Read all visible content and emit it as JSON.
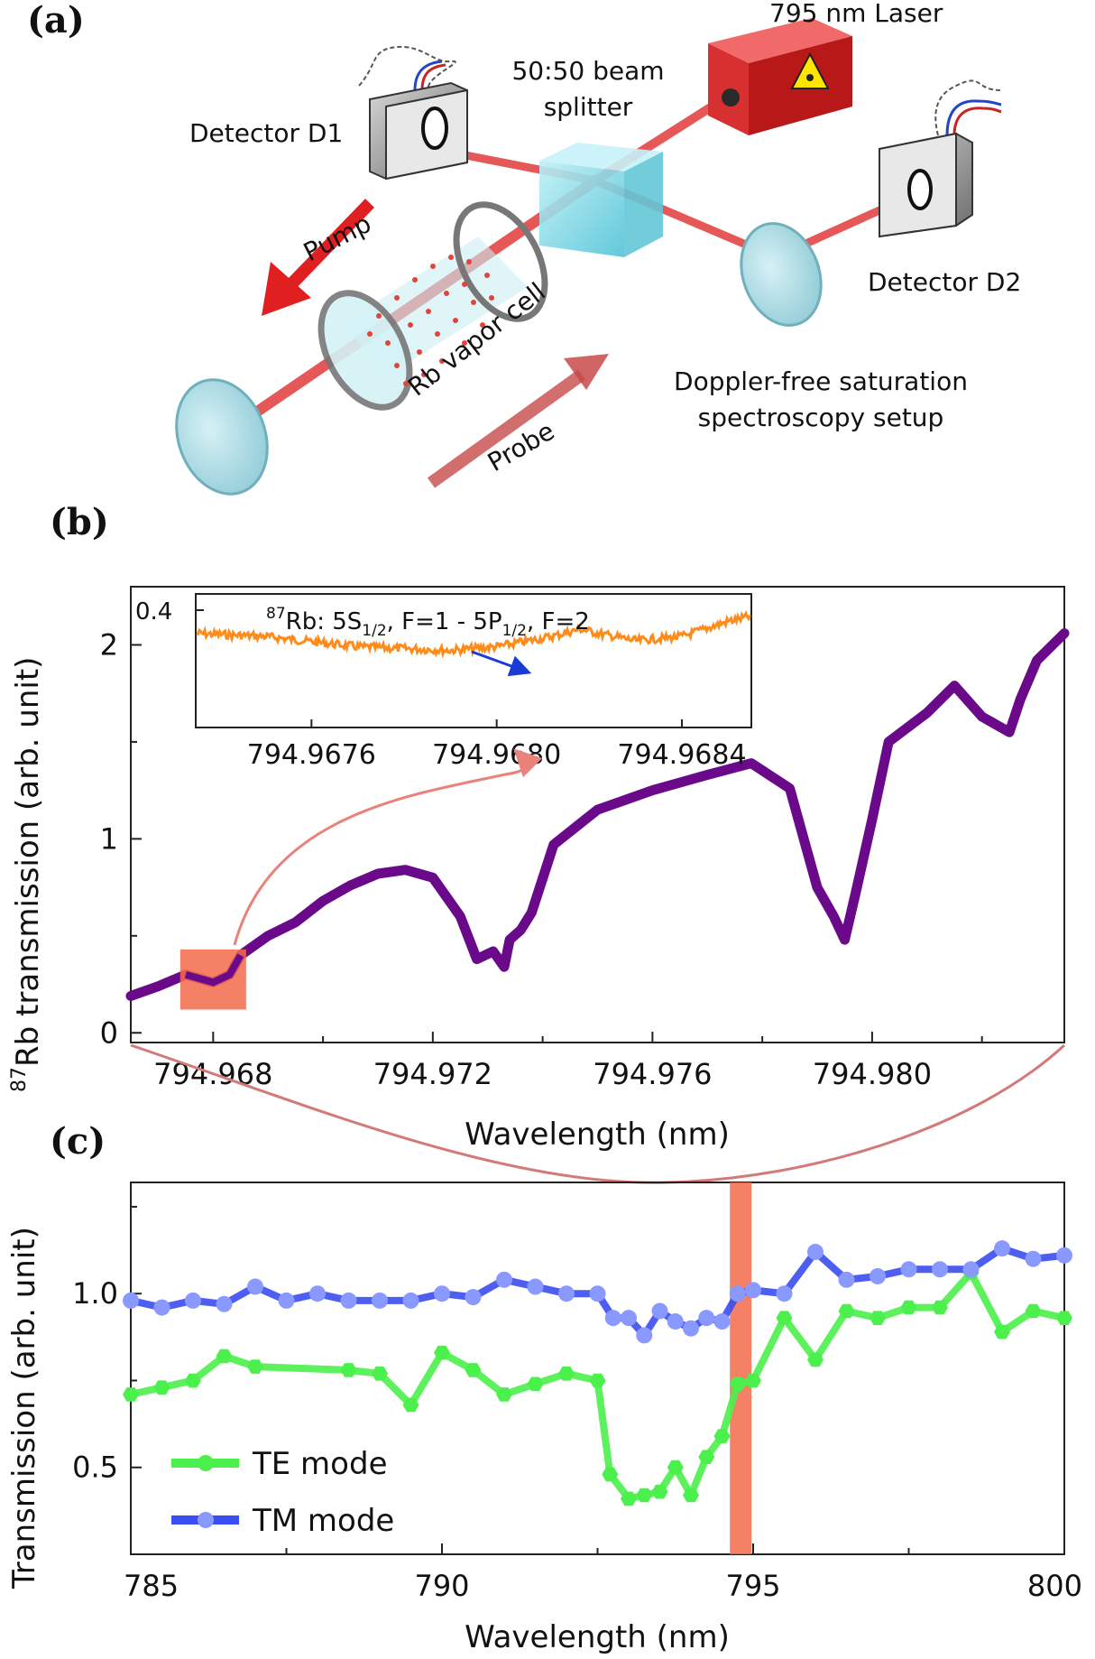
{
  "panels": {
    "a": "(a)",
    "b": "(b)",
    "c": "(c)"
  },
  "setup": {
    "laser": "795 nm Laser",
    "splitter_line1": "50:50 beam",
    "splitter_line2": "splitter",
    "detector1": "Detector D1",
    "detector2": "Detector D2",
    "pump": "Pump",
    "probe": "Probe",
    "cell": "Rb vapor cell",
    "caption_line1": "Doppler-free saturation",
    "caption_line2": "spectroscopy setup"
  },
  "colors": {
    "laser_beam": "#e23a3a",
    "purple_trace": "#6a0a8a",
    "orange_trace": "#ff8c1a",
    "te": "#4cf04c",
    "tm": "#3a4df0",
    "highlight": "#f26b4b",
    "glass": "#9ad6e0"
  },
  "chart_data": [
    {
      "type": "line",
      "panel": "b",
      "xlabel": "Wavelength (nm)",
      "ylabel_sup": "87",
      "ylabel": "Rb transmission (arb. unit)",
      "xlim": [
        794.9665,
        794.9835
      ],
      "ylim": [
        -0.05,
        2.3
      ],
      "xticks": [
        794.968,
        794.972,
        794.976,
        794.98
      ],
      "xtick_labels": [
        "794.968",
        "794.972",
        "794.976",
        "794.980"
      ],
      "yticks": [
        0,
        1,
        2
      ],
      "ytick_labels": [
        "0",
        "1",
        "2"
      ],
      "series": [
        {
          "name": "Rb transmission",
          "x": [
            794.9665,
            794.967,
            794.9675,
            794.968,
            794.9683,
            794.9685,
            794.969,
            794.9695,
            794.97,
            794.9705,
            794.971,
            794.9715,
            794.972,
            794.9725,
            794.9728,
            794.9731,
            794.9733,
            794.9734,
            794.9736,
            794.9738,
            794.9742,
            794.975,
            794.976,
            794.977,
            794.9778,
            794.9785,
            794.979,
            794.9793,
            794.9795,
            794.9797,
            794.98,
            794.9803,
            794.981,
            794.9815,
            794.982,
            794.9825,
            794.9827,
            794.983,
            794.9835
          ],
          "values": [
            0.19,
            0.24,
            0.3,
            0.26,
            0.3,
            0.4,
            0.5,
            0.57,
            0.68,
            0.76,
            0.82,
            0.84,
            0.8,
            0.6,
            0.38,
            0.42,
            0.34,
            0.48,
            0.53,
            0.62,
            0.97,
            1.15,
            1.25,
            1.33,
            1.39,
            1.26,
            0.75,
            0.6,
            0.48,
            0.72,
            1.1,
            1.5,
            1.65,
            1.79,
            1.63,
            1.55,
            1.72,
            1.92,
            2.06
          ]
        }
      ]
    },
    {
      "type": "line",
      "panel": "b-inset",
      "title_sup": "87",
      "title": "Rb: 5S",
      "title_sub1": "1/2",
      "title_mid": ", F=1 - 5P",
      "title_sub2": "1/2",
      "title_end": ", F=2",
      "xlim": [
        794.96735,
        794.96855
      ],
      "ylim": [
        0.2,
        0.42
      ],
      "xticks": [
        794.9676,
        794.968,
        794.9684
      ],
      "xtick_labels": [
        "794.9676",
        "794.9680",
        "794.9684"
      ],
      "ytick_labels": [
        "0.4"
      ],
      "series": [
        {
          "name": "zoom",
          "x": [
            794.96735,
            794.9675,
            794.9677,
            794.9679,
            794.968,
            794.96812,
            794.96818,
            794.96822,
            794.9683,
            794.9684,
            794.9685,
            794.96855
          ],
          "values": [
            0.355,
            0.35,
            0.333,
            0.327,
            0.333,
            0.35,
            0.362,
            0.355,
            0.343,
            0.35,
            0.375,
            0.383
          ]
        }
      ]
    },
    {
      "type": "line",
      "panel": "c",
      "xlabel": "Wavelength (nm)",
      "ylabel": "Transmission (arb. unit)",
      "xlim": [
        785,
        800
      ],
      "ylim": [
        0.25,
        1.32
      ],
      "xticks": [
        785,
        790,
        795,
        800
      ],
      "xtick_labels": [
        "785",
        "790",
        "795",
        "800"
      ],
      "yticks": [
        0.5,
        1.0
      ],
      "ytick_labels": [
        "0.5",
        "1.0"
      ],
      "highlight_x": 794.8,
      "legend": [
        "TE mode",
        "TM mode"
      ],
      "series": [
        {
          "name": "TE mode",
          "x": [
            785,
            785.5,
            786,
            786.5,
            787,
            788.5,
            789,
            789.5,
            790,
            790.5,
            791,
            791.5,
            792,
            792.5,
            792.7,
            793,
            793.25,
            793.5,
            793.75,
            794,
            794.25,
            794.5,
            794.75,
            795,
            795.5,
            796,
            796.5,
            797,
            797.5,
            798,
            798.5,
            799,
            799.5,
            800
          ],
          "values": [
            0.71,
            0.73,
            0.75,
            0.82,
            0.79,
            0.78,
            0.77,
            0.68,
            0.83,
            0.78,
            0.71,
            0.74,
            0.77,
            0.75,
            0.48,
            0.41,
            0.42,
            0.43,
            0.5,
            0.42,
            0.53,
            0.59,
            0.74,
            0.75,
            0.93,
            0.81,
            0.95,
            0.93,
            0.96,
            0.96,
            1.06,
            0.89,
            0.95,
            0.93
          ]
        },
        {
          "name": "TM mode",
          "x": [
            785,
            785.5,
            786,
            786.5,
            787,
            787.5,
            788,
            788.5,
            789,
            789.5,
            790,
            790.5,
            791,
            791.5,
            792,
            792.5,
            792.75,
            793,
            793.25,
            793.5,
            793.75,
            794,
            794.25,
            794.5,
            794.75,
            795,
            795.5,
            796,
            796.5,
            797,
            797.5,
            798,
            798.5,
            799,
            799.5,
            800
          ],
          "values": [
            0.98,
            0.96,
            0.98,
            0.97,
            1.02,
            0.98,
            1.0,
            0.98,
            0.98,
            0.98,
            1.0,
            0.99,
            1.04,
            1.02,
            1.0,
            1.0,
            0.93,
            0.93,
            0.88,
            0.95,
            0.92,
            0.9,
            0.93,
            0.92,
            1.0,
            1.01,
            1.0,
            1.12,
            1.04,
            1.05,
            1.07,
            1.07,
            1.07,
            1.13,
            1.1,
            1.11
          ]
        }
      ]
    }
  ]
}
